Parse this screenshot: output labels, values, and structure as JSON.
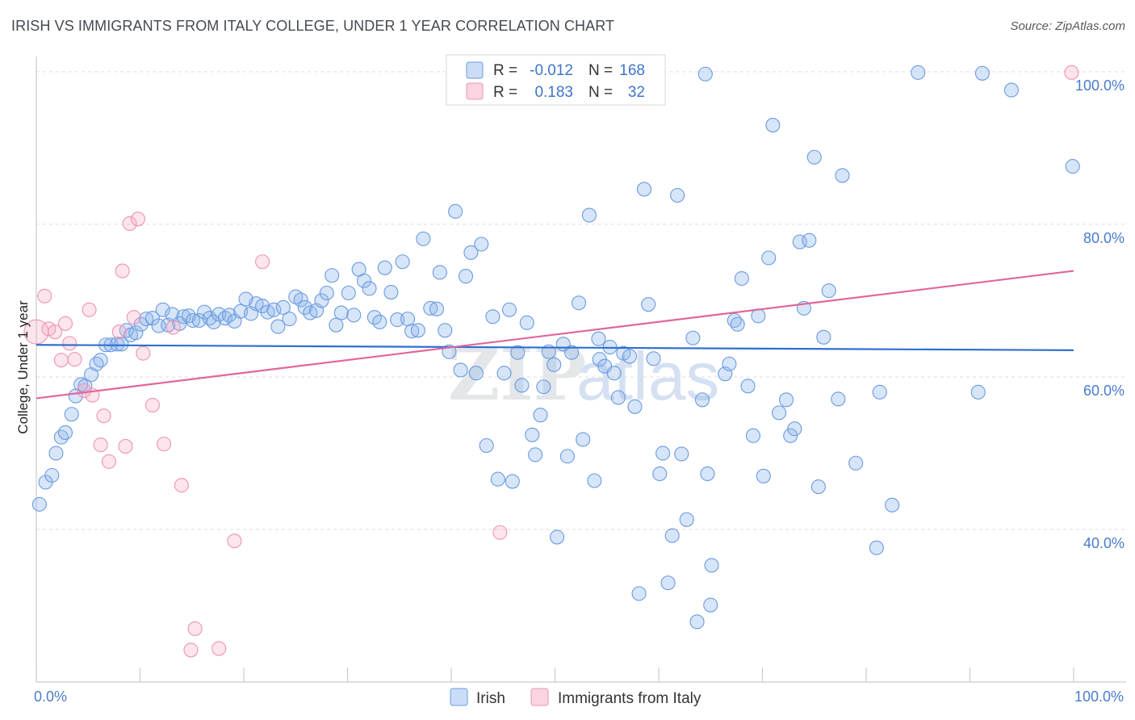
{
  "title": "IRISH VS IMMIGRANTS FROM ITALY COLLEGE, UNDER 1 YEAR CORRELATION CHART",
  "source": "Source: ZipAtlas.com",
  "watermark": "ZIPatlas",
  "colors": {
    "irish_fill": "rgba(140,180,235,0.35)",
    "irish_stroke": "#6a9be0",
    "irish_line": "#2f6fd0",
    "italy_fill": "rgba(245,170,195,0.30)",
    "italy_stroke": "#ee93b3",
    "italy_line": "#e0679a",
    "axis_text": "#4a7bd0",
    "grid": "#dddddd"
  },
  "legend_top": {
    "rows": [
      {
        "r_label": "R =",
        "r_value": "-0.012",
        "n_label": "N =",
        "n_value": "168"
      },
      {
        "r_label": "R =",
        "r_value": "0.183",
        "n_label": "N =",
        "n_value": "32"
      }
    ]
  },
  "legend_bottom": {
    "items": [
      "Irish",
      "Immigrants from Italy"
    ]
  },
  "chart_data": {
    "type": "scatter",
    "xlabel": "",
    "ylabel": "College, Under 1 year",
    "xlim": [
      0,
      100
    ],
    "ylim": [
      20,
      102
    ],
    "x_tick_labels": [
      "0.0%",
      "100.0%"
    ],
    "y_tick_labels": [
      "40.0%",
      "60.0%",
      "80.0%",
      "100.0%"
    ],
    "y_ticks": [
      40,
      60,
      80,
      100
    ],
    "grid": true,
    "legend_position": "top-center",
    "series": [
      {
        "name": "Irish",
        "trend": {
          "x": [
            0,
            100
          ],
          "y": [
            64.2,
            63.5
          ]
        },
        "points": [
          [
            0.3,
            43.3
          ],
          [
            0.9,
            46.2
          ],
          [
            1.5,
            47.1
          ],
          [
            1.9,
            50.0
          ],
          [
            2.4,
            52.1
          ],
          [
            2.8,
            52.7
          ],
          [
            3.4,
            55.1
          ],
          [
            3.8,
            57.5
          ],
          [
            4.3,
            59.0
          ],
          [
            4.7,
            58.8
          ],
          [
            5.3,
            60.3
          ],
          [
            5.8,
            61.7
          ],
          [
            6.2,
            62.2
          ],
          [
            6.7,
            64.2
          ],
          [
            7.2,
            64.2
          ],
          [
            7.8,
            64.3
          ],
          [
            8.2,
            64.3
          ],
          [
            8.7,
            66.1
          ],
          [
            9.1,
            65.5
          ],
          [
            9.6,
            65.8
          ],
          [
            10.1,
            66.9
          ],
          [
            10.6,
            67.6
          ],
          [
            11.2,
            67.7
          ],
          [
            11.8,
            66.7
          ],
          [
            12.2,
            68.8
          ],
          [
            12.7,
            66.8
          ],
          [
            13.1,
            68.2
          ],
          [
            13.8,
            67.0
          ],
          [
            14.2,
            67.9
          ],
          [
            14.7,
            68.0
          ],
          [
            15.1,
            67.4
          ],
          [
            15.7,
            67.4
          ],
          [
            16.2,
            68.5
          ],
          [
            16.7,
            67.7
          ],
          [
            17.1,
            67.2
          ],
          [
            17.6,
            68.2
          ],
          [
            18.2,
            67.7
          ],
          [
            18.6,
            68.1
          ],
          [
            19.1,
            67.3
          ],
          [
            19.7,
            68.6
          ],
          [
            20.2,
            70.2
          ],
          [
            20.7,
            68.3
          ],
          [
            21.2,
            69.6
          ],
          [
            21.8,
            69.3
          ],
          [
            22.3,
            68.5
          ],
          [
            22.9,
            68.8
          ],
          [
            23.3,
            66.6
          ],
          [
            23.8,
            69.1
          ],
          [
            24.4,
            67.6
          ],
          [
            25.0,
            70.5
          ],
          [
            25.5,
            70.1
          ],
          [
            25.9,
            69.1
          ],
          [
            26.4,
            68.4
          ],
          [
            27.0,
            68.7
          ],
          [
            27.5,
            70.0
          ],
          [
            28.0,
            71.0
          ],
          [
            28.5,
            73.3
          ],
          [
            28.9,
            66.8
          ],
          [
            29.4,
            68.4
          ],
          [
            30.1,
            71.0
          ],
          [
            30.6,
            68.1
          ],
          [
            31.1,
            74.1
          ],
          [
            31.6,
            72.6
          ],
          [
            32.1,
            71.6
          ],
          [
            32.6,
            67.8
          ],
          [
            33.1,
            67.2
          ],
          [
            33.6,
            74.3
          ],
          [
            34.2,
            71.1
          ],
          [
            34.8,
            67.5
          ],
          [
            35.3,
            75.1
          ],
          [
            35.8,
            67.6
          ],
          [
            36.2,
            66.0
          ],
          [
            36.8,
            66.1
          ],
          [
            37.3,
            78.1
          ],
          [
            38.0,
            69.0
          ],
          [
            38.6,
            68.9
          ],
          [
            38.9,
            73.7
          ],
          [
            39.4,
            66.1
          ],
          [
            39.8,
            63.3
          ],
          [
            40.4,
            81.7
          ],
          [
            40.9,
            60.9
          ],
          [
            41.4,
            73.2
          ],
          [
            41.9,
            76.3
          ],
          [
            42.4,
            60.5
          ],
          [
            42.9,
            77.4
          ],
          [
            43.4,
            51.0
          ],
          [
            44.0,
            67.9
          ],
          [
            44.5,
            46.6
          ],
          [
            45.1,
            60.5
          ],
          [
            45.6,
            68.8
          ],
          [
            45.9,
            46.3
          ],
          [
            46.4,
            63.2
          ],
          [
            46.8,
            58.9
          ],
          [
            47.3,
            67.1
          ],
          [
            47.8,
            52.4
          ],
          [
            48.1,
            49.8
          ],
          [
            48.6,
            55.0
          ],
          [
            48.9,
            58.7
          ],
          [
            49.4,
            63.3
          ],
          [
            49.9,
            61.6
          ],
          [
            50.2,
            39.0
          ],
          [
            50.8,
            64.3
          ],
          [
            51.2,
            49.6
          ],
          [
            51.6,
            63.2
          ],
          [
            52.3,
            69.7
          ],
          [
            52.7,
            51.8
          ],
          [
            53.3,
            81.2
          ],
          [
            53.8,
            46.4
          ],
          [
            54.3,
            62.3
          ],
          [
            54.8,
            61.4
          ],
          [
            55.3,
            63.9
          ],
          [
            55.7,
            60.5
          ],
          [
            56.1,
            57.3
          ],
          [
            56.6,
            63.1
          ],
          [
            57.2,
            62.7
          ],
          [
            57.7,
            56.1
          ],
          [
            58.1,
            31.6
          ],
          [
            58.6,
            84.6
          ],
          [
            59.0,
            69.5
          ],
          [
            59.5,
            62.4
          ],
          [
            60.1,
            47.3
          ],
          [
            60.4,
            50.0
          ],
          [
            60.9,
            33.0
          ],
          [
            61.3,
            39.2
          ],
          [
            61.8,
            83.8
          ],
          [
            62.2,
            49.9
          ],
          [
            62.7,
            41.3
          ],
          [
            63.3,
            65.1
          ],
          [
            63.7,
            27.9
          ],
          [
            64.2,
            57.0
          ],
          [
            64.7,
            47.3
          ],
          [
            65.1,
            35.3
          ],
          [
            65.0,
            30.1
          ],
          [
            66.4,
            60.4
          ],
          [
            66.8,
            61.7
          ],
          [
            67.3,
            67.4
          ],
          [
            67.6,
            66.9
          ],
          [
            68.0,
            72.9
          ],
          [
            68.6,
            58.8
          ],
          [
            69.1,
            52.3
          ],
          [
            69.6,
            68.0
          ],
          [
            70.1,
            47.0
          ],
          [
            70.6,
            75.6
          ],
          [
            71.0,
            93.0
          ],
          [
            71.6,
            55.3
          ],
          [
            72.3,
            57.0
          ],
          [
            72.7,
            52.3
          ],
          [
            73.1,
            53.2
          ],
          [
            73.6,
            77.7
          ],
          [
            74.0,
            69.0
          ],
          [
            74.5,
            77.9
          ],
          [
            75.0,
            88.8
          ],
          [
            75.4,
            45.6
          ],
          [
            75.9,
            65.2
          ],
          [
            76.4,
            71.3
          ],
          [
            77.3,
            57.1
          ],
          [
            77.7,
            86.4
          ],
          [
            79.0,
            48.7
          ],
          [
            81.0,
            37.6
          ],
          [
            81.3,
            58.0
          ],
          [
            82.5,
            43.2
          ],
          [
            85.0,
            99.9
          ],
          [
            90.8,
            58.0
          ],
          [
            91.2,
            99.8
          ],
          [
            94.0,
            97.6
          ],
          [
            99.9,
            87.6
          ],
          [
            64.5,
            99.7
          ],
          [
            54.2,
            65.0
          ]
        ]
      },
      {
        "name": "Immigrants from Italy",
        "trend": {
          "x": [
            0,
            100
          ],
          "y": [
            57.2,
            73.9
          ]
        },
        "points": [
          [
            0.0,
            65.9
          ],
          [
            0.8,
            70.6
          ],
          [
            1.2,
            66.3
          ],
          [
            1.8,
            65.9
          ],
          [
            2.4,
            62.2
          ],
          [
            2.8,
            67.0
          ],
          [
            3.2,
            64.4
          ],
          [
            3.7,
            62.3
          ],
          [
            4.6,
            58.2
          ],
          [
            5.1,
            68.8
          ],
          [
            5.4,
            57.6
          ],
          [
            6.2,
            51.1
          ],
          [
            6.5,
            54.9
          ],
          [
            7.0,
            48.9
          ],
          [
            8.0,
            65.9
          ],
          [
            8.3,
            73.9
          ],
          [
            8.6,
            50.9
          ],
          [
            9.0,
            80.1
          ],
          [
            9.4,
            67.8
          ],
          [
            9.8,
            80.7
          ],
          [
            10.3,
            63.1
          ],
          [
            11.2,
            56.3
          ],
          [
            12.3,
            51.2
          ],
          [
            13.2,
            66.5
          ],
          [
            14.0,
            45.8
          ],
          [
            14.9,
            24.2
          ],
          [
            15.3,
            27.0
          ],
          [
            17.6,
            24.4
          ],
          [
            19.1,
            38.5
          ],
          [
            21.8,
            75.1
          ],
          [
            44.7,
            39.6
          ],
          [
            99.8,
            99.9
          ]
        ]
      }
    ]
  }
}
